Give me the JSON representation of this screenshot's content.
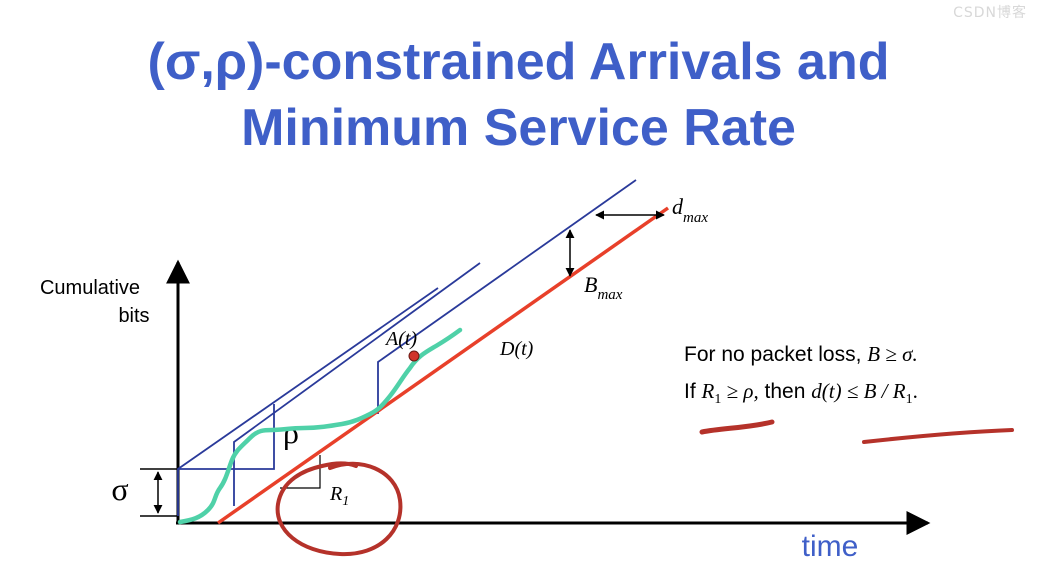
{
  "title": {
    "line1": "(σ,ρ)-constrained Arrivals and",
    "line2": "Minimum Service Rate"
  },
  "watermark": "CSDN博客",
  "axes": {
    "ylabel_line1": "Cumulative",
    "ylabel_line2": "bits",
    "xlabel": "time"
  },
  "labels": {
    "sigma": "σ",
    "rho": "ρ",
    "r1": "R",
    "r1_sub": "1",
    "a_t": "A(t)",
    "d_t": "D(t)",
    "b_max": "B",
    "b_max_sub": "max",
    "d_max": "d",
    "d_max_sub": "max"
  },
  "notes": {
    "line1_text": "For no packet loss, ",
    "line1_math": "B ≥ σ.",
    "line2_if": "If ",
    "line2_cond": "R",
    "line2_cond_sub": "1",
    "line2_cond_rest": " ≥ ρ,",
    "line2_then": " then ",
    "line2_math": "d(t) ≤ B / R",
    "line2_math_sub": "1",
    "line2_end": "."
  },
  "colors": {
    "title": "#3f5fc8",
    "envelope": "#2a3a9a",
    "service": "#e8402a",
    "arrivals": "#4fd1a8",
    "annotation": "#b5322a",
    "axis": "#000000"
  }
}
